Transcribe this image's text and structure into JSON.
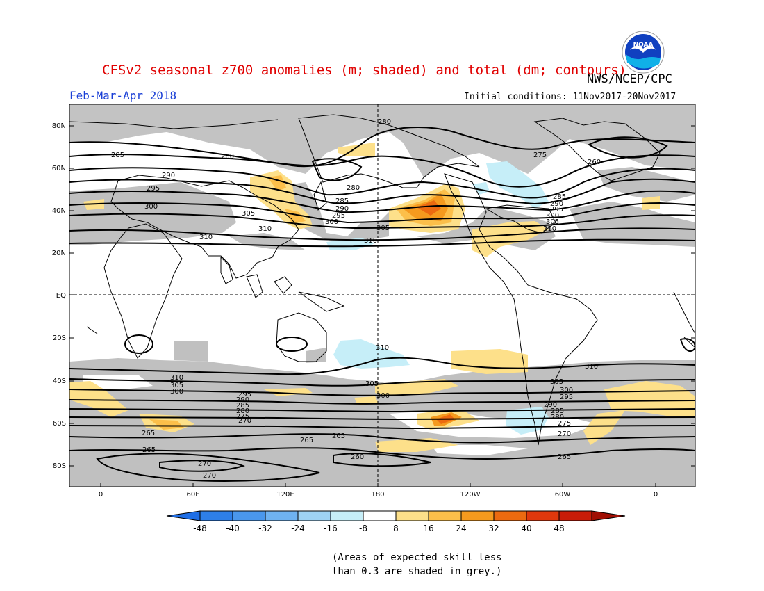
{
  "title": "CFSv2 seasonal z700 anomalies (m; shaded) and total (dm; contours)",
  "agency": "NWS/NCEP/CPC",
  "period": "Feb-Mar-Apr 2018",
  "initial_conditions": "Initial conditions: 11Nov2017-20Nov2017",
  "logo_text": "NOAA",
  "lat_labels": [
    "80N",
    "60N",
    "40N",
    "20N",
    "EQ",
    "20S",
    "40S",
    "60S",
    "80S"
  ],
  "lon_labels": [
    "0",
    "60E",
    "120E",
    "180",
    "120W",
    "60W",
    "0"
  ],
  "colorbar": {
    "tick_labels": [
      "-48",
      "-40",
      "-32",
      "-24",
      "-16",
      "-8",
      "8",
      "16",
      "24",
      "32",
      "40",
      "48"
    ],
    "colors": [
      "#1e6ee6",
      "#2e7fe8",
      "#4a97ec",
      "#6fb2f0",
      "#9ed2f4",
      "#c6eef8",
      "#ffffff",
      "#fde08a",
      "#fcbf4a",
      "#f59a1e",
      "#ec6a10",
      "#e0380c",
      "#c81c08",
      "#a00f04"
    ]
  },
  "skill_mask_color": "#c0c0c0",
  "note_lines": [
    "(Areas of expected skill less",
    "than 0.3 are shaded in grey.)"
  ],
  "contour_labels": {
    "nh": [
      "280",
      "285",
      "280",
      "290",
      "295",
      "300",
      "305",
      "310",
      "280",
      "285",
      "290",
      "295",
      "300",
      "310",
      "305",
      "310",
      "275",
      "260",
      "285",
      "290",
      "295",
      "300",
      "305",
      "310"
    ],
    "sh": [
      "310",
      "305",
      "300",
      "295",
      "290",
      "285",
      "280",
      "275",
      "270",
      "265",
      "265",
      "265",
      "260",
      "270",
      "270",
      "310",
      "305",
      "300",
      "310",
      "305",
      "300",
      "295",
      "290",
      "285",
      "280",
      "275",
      "270",
      "265",
      "265"
    ]
  }
}
